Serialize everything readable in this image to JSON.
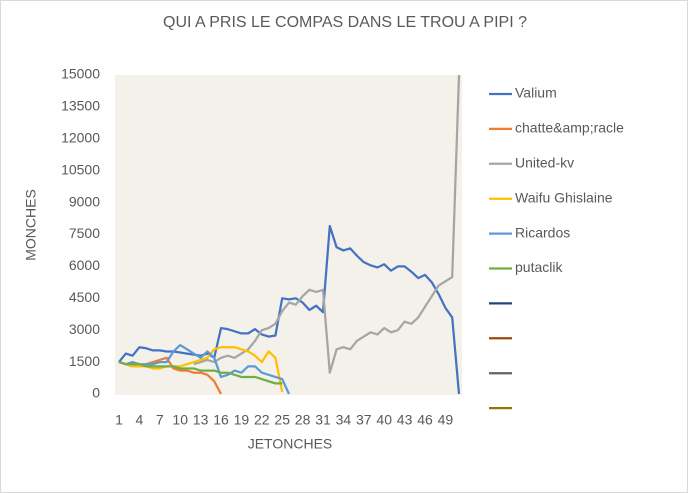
{
  "chart_data": {
    "type": "line",
    "title": "QUI A PRIS LE COMPAS DANS LE TROU A PIPI ?",
    "x_label": "JETONCHES",
    "y_label": "MONCHES",
    "categories": [
      1,
      null,
      null,
      4,
      null,
      null,
      7,
      null,
      null,
      10,
      null,
      null,
      13,
      null,
      null,
      16,
      null,
      null,
      19,
      null,
      null,
      22,
      null,
      null,
      25,
      null,
      null,
      28,
      null,
      null,
      31,
      null,
      null,
      34,
      null,
      null,
      37,
      null,
      null,
      40,
      null,
      null,
      43,
      null,
      null,
      46,
      null,
      null,
      49,
      null,
      null
    ],
    "ylim": [
      0,
      15000
    ],
    "yticks": [
      0,
      1500,
      3000,
      4500,
      6000,
      7500,
      9000,
      10500,
      12000,
      13500,
      15000
    ],
    "legend": "right",
    "series": [
      {
        "name": "Valium",
        "color": "#4472c4",
        "values": [
          1500,
          1900,
          1800,
          2200,
          2150,
          2050,
          2050,
          2000,
          2000,
          1950,
          1900,
          1850,
          1800,
          1900,
          1700,
          3100,
          3050,
          2950,
          2850,
          2850,
          3050,
          2800,
          2700,
          2750,
          4500,
          4450,
          4500,
          4300,
          3950,
          4150,
          3850,
          7900,
          6900,
          6750,
          6850,
          6500,
          6200,
          6050,
          5950,
          6100,
          5800,
          6000,
          6000,
          5750,
          5450,
          5600,
          5250,
          4700,
          4050,
          3600,
          0
        ]
      },
      {
        "name": "chatte&amp;racle",
        "color": "#ed7d31",
        "values": [
          1500,
          1400,
          1300,
          1300,
          1400,
          1500,
          1600,
          1700,
          1200,
          1100,
          1100,
          1000,
          1000,
          900,
          600,
          0,
          null,
          null,
          null,
          null,
          null,
          null,
          null,
          null,
          null,
          null,
          null,
          null,
          null,
          null,
          null,
          null,
          null,
          null,
          null,
          null,
          null,
          null,
          null,
          null,
          null,
          null,
          null,
          null,
          null,
          null,
          null,
          null,
          null,
          null,
          null
        ]
      },
      {
        "name": "United-kv",
        "color": "#a5a5a5",
        "values": [
          null,
          null,
          null,
          null,
          null,
          null,
          null,
          null,
          null,
          null,
          null,
          1400,
          1500,
          1600,
          1500,
          1700,
          1800,
          1700,
          1900,
          2100,
          2500,
          3000,
          3100,
          3300,
          3900,
          4300,
          4200,
          4600,
          4900,
          4800,
          4900,
          1000,
          2100,
          2200,
          2100,
          2500,
          2700,
          2900,
          2800,
          3100,
          2900,
          3000,
          3400,
          3300,
          3600,
          4100,
          4600,
          5100,
          5300,
          5500,
          15000
        ]
      },
      {
        "name": "Waifu Ghislaine",
        "color": "#ffc000",
        "values": [
          1500,
          1400,
          1300,
          1300,
          1300,
          1200,
          1200,
          1300,
          1300,
          1300,
          1400,
          1500,
          1600,
          1700,
          2100,
          2200,
          2200,
          2200,
          2100,
          2000,
          1800,
          1500,
          2000,
          1700,
          100,
          null,
          null,
          null,
          null,
          null,
          null,
          null,
          null,
          null,
          null,
          null,
          null,
          null,
          null,
          null,
          null,
          null,
          null,
          null,
          null,
          null,
          null,
          null,
          null,
          null,
          null
        ]
      },
      {
        "name": "Ricardos",
        "color": "#5b9bd5",
        "values": [
          1500,
          1400,
          1500,
          1400,
          1400,
          1400,
          1500,
          1500,
          2000,
          2300,
          2100,
          1900,
          1700,
          2000,
          1700,
          800,
          900,
          1100,
          1000,
          1300,
          1300,
          1000,
          900,
          800,
          700,
          0,
          null,
          null,
          null,
          null,
          null,
          null,
          null,
          null,
          null,
          null,
          null,
          null,
          null,
          null,
          null,
          null,
          null,
          null,
          null,
          null,
          null,
          null,
          null,
          null,
          null
        ]
      },
      {
        "name": "putaclik",
        "color": "#70ad47",
        "values": [
          1500,
          1400,
          1400,
          1400,
          1300,
          1300,
          1300,
          1300,
          1300,
          1200,
          1200,
          1200,
          1100,
          1100,
          1100,
          1000,
          1000,
          900,
          800,
          800,
          800,
          700,
          600,
          500,
          500,
          null,
          null,
          null,
          null,
          null,
          null,
          null,
          null,
          null,
          null,
          null,
          null,
          null,
          null,
          null,
          null,
          null,
          null,
          null,
          null,
          null,
          null,
          null,
          null,
          null,
          null
        ]
      },
      {
        "color": "#264478"
      },
      {
        "color": "#9e480e"
      },
      {
        "color": "#636363"
      },
      {
        "color": "#997300"
      }
    ]
  }
}
